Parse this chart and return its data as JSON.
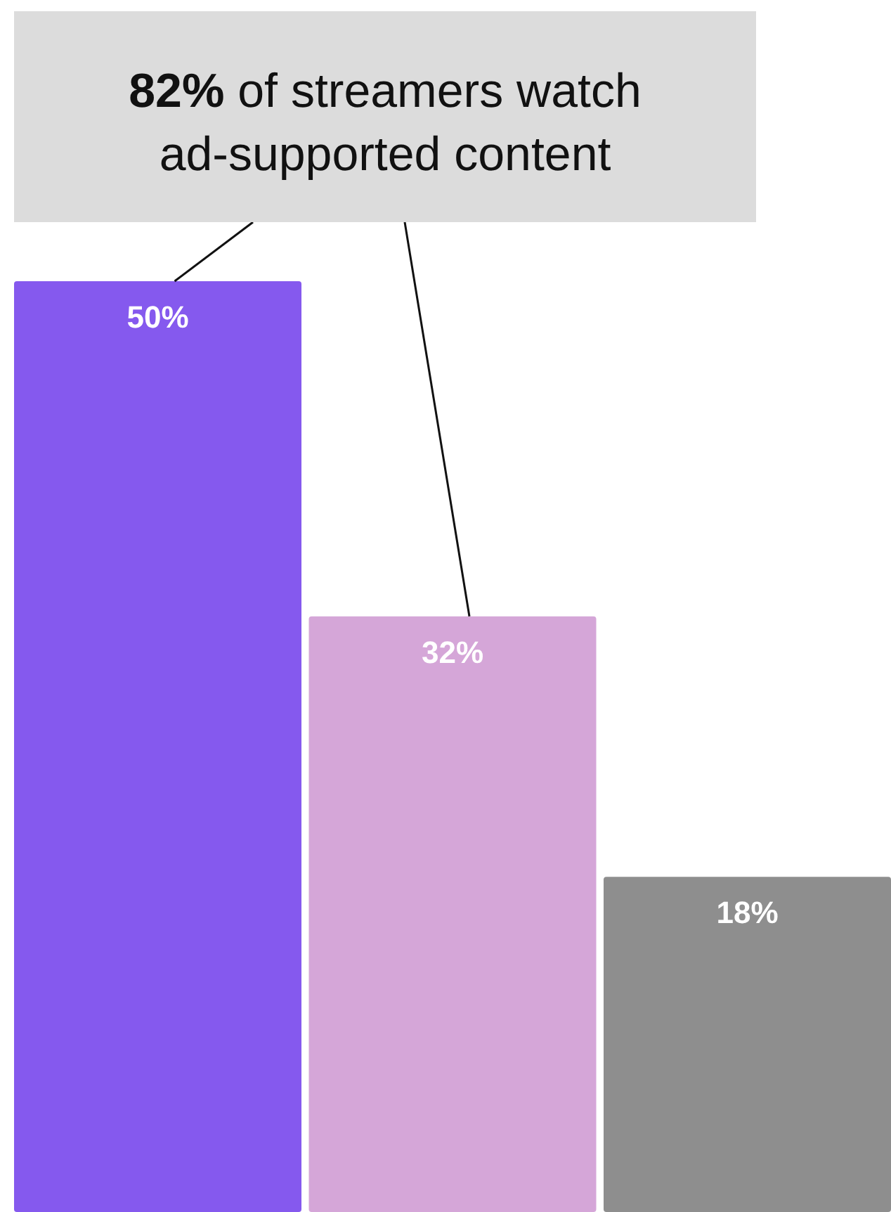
{
  "chart_data": {
    "type": "bar",
    "categories": [
      null,
      null,
      null
    ],
    "values": [
      50,
      32,
      18
    ],
    "colors": [
      "#8559ee",
      "#d5a6d8",
      "#8e8e8e"
    ],
    "value_labels": [
      "50%",
      "32%",
      "18%"
    ],
    "annotations": [
      "82% of streamers watch ad-supported content"
    ]
  }
}
